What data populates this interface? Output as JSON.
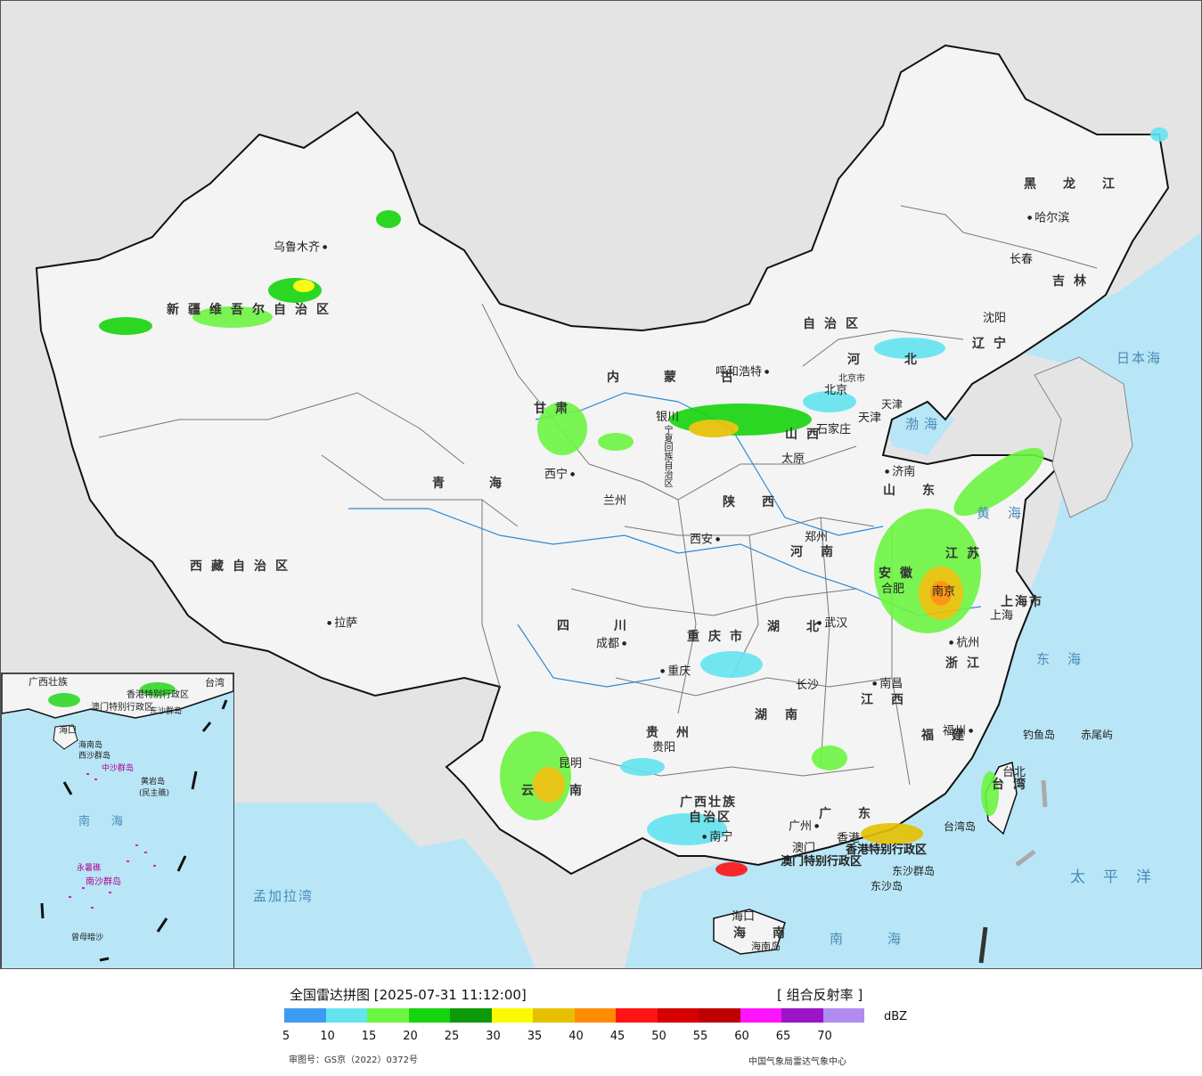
{
  "legend": {
    "title": "全国雷达拼图 [2025-07-31 11:12:00]",
    "product": "[ 组合反射率 ]",
    "unit": "dBZ",
    "approval": "审图号：GS京（2022）0372号",
    "agency": "中国气象局雷达气象中心",
    "ticks": [
      "5",
      "10",
      "15",
      "20",
      "25",
      "30",
      "35",
      "40",
      "45",
      "50",
      "55",
      "60",
      "65",
      "70"
    ],
    "colors": [
      "#3d9bf0",
      "#63e4ef",
      "#6cf542",
      "#16d40d",
      "#0d9a08",
      "#fafa00",
      "#e6c000",
      "#ff8c00",
      "#ff1414",
      "#d60000",
      "#bf0000",
      "#ff14ff",
      "#9c14c8",
      "#b08cf0"
    ]
  },
  "map": {
    "land_color": "#f4f4f4",
    "sea_color": "#b8e6f7",
    "outside_color": "#e4e4e4",
    "provinces": [
      {
        "id": "xinjiang",
        "text": "新疆维吾尔自治区"
      },
      {
        "id": "xizang",
        "text": "西藏自治区"
      },
      {
        "id": "qinghai",
        "text": "青海"
      },
      {
        "id": "gansu",
        "text": "甘肃"
      },
      {
        "id": "neimenggu1",
        "text": "内蒙古"
      },
      {
        "id": "neimenggu2",
        "text": "自治区"
      },
      {
        "id": "heilongjiang",
        "text": "黑龙江"
      },
      {
        "id": "jilin",
        "text": "吉林"
      },
      {
        "id": "liaoning",
        "text": "辽宁"
      },
      {
        "id": "hebei",
        "text": "河北"
      },
      {
        "id": "shanxi",
        "text": "山西"
      },
      {
        "id": "shandong",
        "text": "山东"
      },
      {
        "id": "shaanxi",
        "text": "陕西"
      },
      {
        "id": "henan",
        "text": "河南"
      },
      {
        "id": "jiangsu",
        "text": "江苏"
      },
      {
        "id": "anhui",
        "text": "安徽"
      },
      {
        "id": "sichuan",
        "text": "四川"
      },
      {
        "id": "chongqing",
        "text": "重庆市"
      },
      {
        "id": "hubei",
        "text": "湖北"
      },
      {
        "id": "zhejiang",
        "text": "浙江"
      },
      {
        "id": "jiangxi",
        "text": "江西"
      },
      {
        "id": "hunan",
        "text": "湖南"
      },
      {
        "id": "guizhou",
        "text": "贵州"
      },
      {
        "id": "fujian",
        "text": "福建"
      },
      {
        "id": "yunnan",
        "text": "云南"
      },
      {
        "id": "guangxi1",
        "text": "广西壮族"
      },
      {
        "id": "guangxi2",
        "text": "自治区"
      },
      {
        "id": "guangdong",
        "text": "广东"
      },
      {
        "id": "hainan",
        "text": "海南"
      },
      {
        "id": "taiwan",
        "text": "台湾"
      },
      {
        "id": "shanghai",
        "text": "上海市"
      },
      {
        "id": "tianjin",
        "text": "天津"
      },
      {
        "id": "beijing",
        "text": "北京市"
      },
      {
        "id": "ningxia",
        "text": "宁夏回族自治区"
      },
      {
        "id": "hk",
        "text": "香港特别行政区"
      },
      {
        "id": "macau",
        "text": "澳门特别行政区"
      }
    ],
    "cities": [
      {
        "id": "urumqi",
        "text": "乌鲁木齐"
      },
      {
        "id": "lhasa",
        "text": "拉萨"
      },
      {
        "id": "xining",
        "text": "西宁"
      },
      {
        "id": "lanzhou",
        "text": "兰州"
      },
      {
        "id": "yinchuan",
        "text": "银川"
      },
      {
        "id": "hohhot",
        "text": "呼和浩特"
      },
      {
        "id": "harbin",
        "text": "哈尔滨"
      },
      {
        "id": "changchun",
        "text": "长春"
      },
      {
        "id": "shenyang",
        "text": "沈阳"
      },
      {
        "id": "beijing",
        "text": "北京"
      },
      {
        "id": "tianjin",
        "text": "天津"
      },
      {
        "id": "shijiazhuang",
        "text": "石家庄"
      },
      {
        "id": "taiyuan",
        "text": "太原"
      },
      {
        "id": "jinan",
        "text": "济南"
      },
      {
        "id": "zhengzhou",
        "text": "郑州"
      },
      {
        "id": "xian",
        "text": "西安"
      },
      {
        "id": "hefei",
        "text": "合肥"
      },
      {
        "id": "nanjing",
        "text": "南京"
      },
      {
        "id": "shanghai",
        "text": "上海"
      },
      {
        "id": "hangzhou",
        "text": "杭州"
      },
      {
        "id": "wuhan",
        "text": "武汉"
      },
      {
        "id": "chengdu",
        "text": "成都"
      },
      {
        "id": "chongqing",
        "text": "重庆"
      },
      {
        "id": "changsha",
        "text": "长沙"
      },
      {
        "id": "nanchang",
        "text": "南昌"
      },
      {
        "id": "guiyang",
        "text": "贵阳"
      },
      {
        "id": "kunming",
        "text": "昆明"
      },
      {
        "id": "nanning",
        "text": "南宁"
      },
      {
        "id": "guangzhou",
        "text": "广州"
      },
      {
        "id": "xianggang",
        "text": "香港"
      },
      {
        "id": "aomen",
        "text": "澳门"
      },
      {
        "id": "fuzhou",
        "text": "福州"
      },
      {
        "id": "taibei",
        "text": "台北"
      },
      {
        "id": "haikou",
        "text": "海口"
      }
    ],
    "seas": [
      {
        "id": "bohai",
        "text": "渤海"
      },
      {
        "id": "huanghai",
        "text": "黄海"
      },
      {
        "id": "donghai",
        "text": "东海"
      },
      {
        "id": "nanhai",
        "text": "南海"
      },
      {
        "id": "taipingyang",
        "text": "太平洋"
      },
      {
        "id": "ribenhai",
        "text": "日本海"
      },
      {
        "id": "mengjialawan",
        "text": "孟加拉湾"
      }
    ],
    "islands": [
      {
        "id": "diaoyu",
        "text": "钓鱼岛"
      },
      {
        "id": "chiwei",
        "text": "赤尾屿"
      },
      {
        "id": "taiwandao",
        "text": "台湾岛"
      },
      {
        "id": "dongsha",
        "text": "东沙群岛"
      },
      {
        "id": "dongshadao",
        "text": "东沙岛"
      },
      {
        "id": "hainandao",
        "text": "海南岛"
      }
    ],
    "inset": {
      "labels": [
        {
          "id": "i-guangxi",
          "text": "广西壮族"
        },
        {
          "id": "i-taiwan",
          "text": "台湾"
        },
        {
          "id": "i-xianggang",
          "text": "香港特别行政区"
        },
        {
          "id": "i-aomen",
          "text": "澳门特别行政区"
        },
        {
          "id": "i-dongsha",
          "text": "东沙群岛"
        },
        {
          "id": "i-haikou",
          "text": "海口"
        },
        {
          "id": "i-hainandao",
          "text": "海南岛"
        },
        {
          "id": "i-xisha",
          "text": "西沙群岛"
        },
        {
          "id": "i-zhongsha",
          "text": "中沙群岛"
        },
        {
          "id": "i-huangyan",
          "text": "黄岩岛"
        },
        {
          "id": "i-minzhu",
          "text": "(民主礁)"
        },
        {
          "id": "i-nanhai",
          "text": "南海"
        },
        {
          "id": "i-yongshu",
          "text": "永暑礁"
        },
        {
          "id": "i-nansha",
          "text": "南沙群岛"
        },
        {
          "id": "i-zengmu",
          "text": "曾母暗沙"
        }
      ]
    }
  }
}
